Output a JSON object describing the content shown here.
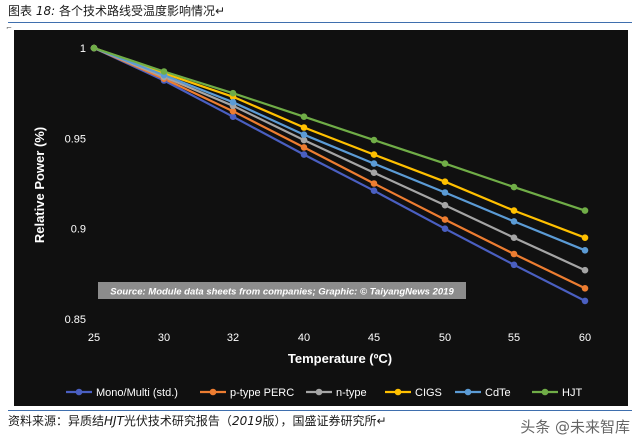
{
  "figure": {
    "label": "图表",
    "number": "18:",
    "title": "各个技术路线受温度影响情况",
    "title_mark": "↵"
  },
  "source_line": {
    "prefix": "资料来源：异质结",
    "italic1": "HJT",
    "middle": "光伏技术研究报告（",
    "italic2": "2019",
    "suffix": "版），国盛证券研究所↵"
  },
  "watermark": "头条 @未来智库",
  "chart_data": {
    "type": "line",
    "xlabel": "Temperature (ºC)",
    "ylabel": "Relative Power (%)",
    "x": [
      25,
      30,
      32,
      40,
      45,
      50,
      55,
      60
    ],
    "x_tick_labels": [
      "25",
      "30",
      "32",
      "40",
      "45",
      "50",
      "55",
      "60"
    ],
    "ylim": [
      0.85,
      1.0
    ],
    "y_ticks": [
      0.85,
      0.9,
      0.95,
      1
    ],
    "y_tick_labels": [
      "0.85",
      "0.9",
      "0.95",
      "1"
    ],
    "grid": false,
    "legend_position": "bottom",
    "annotation": "Source: Module data sheets from companies; Graphic: © TaiyangNews 2019",
    "series": [
      {
        "name": "Mono/Multi (std.)",
        "color": "#4a5fc1",
        "values": [
          1.0,
          0.982,
          0.962,
          0.941,
          0.921,
          0.9,
          0.88,
          0.86
        ]
      },
      {
        "name": "p-type PERC",
        "color": "#ed7d31",
        "values": [
          1.0,
          0.983,
          0.965,
          0.945,
          0.925,
          0.905,
          0.886,
          0.867
        ]
      },
      {
        "name": "n-type",
        "color": "#a5a5a5",
        "values": [
          1.0,
          0.984,
          0.968,
          0.949,
          0.931,
          0.913,
          0.895,
          0.877
        ]
      },
      {
        "name": "CIGS",
        "color": "#ffc000",
        "values": [
          1.0,
          0.986,
          0.973,
          0.956,
          0.941,
          0.926,
          0.91,
          0.895
        ]
      },
      {
        "name": "CdTe",
        "color": "#5b9bd5",
        "values": [
          1.0,
          0.985,
          0.97,
          0.952,
          0.936,
          0.92,
          0.904,
          0.888
        ]
      },
      {
        "name": "HJT",
        "color": "#70ad47",
        "values": [
          1.0,
          0.987,
          0.975,
          0.962,
          0.949,
          0.936,
          0.923,
          0.91
        ]
      }
    ]
  }
}
